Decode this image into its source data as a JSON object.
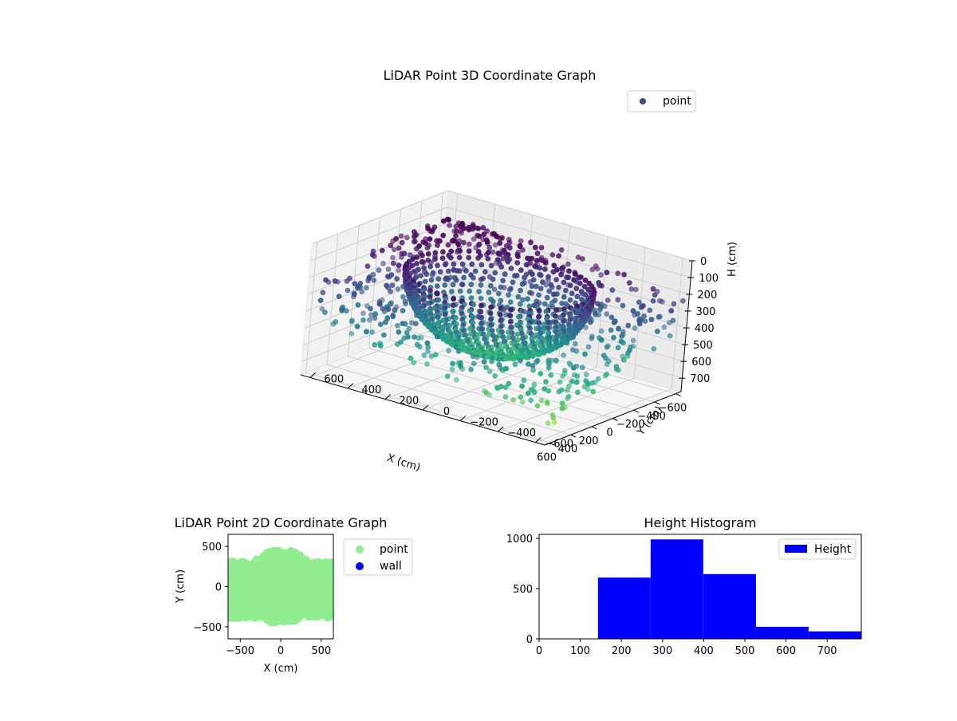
{
  "chart_data": [
    {
      "type": "scatter",
      "projection": "3d",
      "title": "LiDAR Point 3D Coordinate Graph",
      "xlabel": "X (cm)",
      "ylabel": "Y (cm)",
      "zlabel": "H (cm)",
      "xlim": [
        -650,
        650
      ],
      "ylim": [
        -650,
        650
      ],
      "zlim": [
        780,
        0
      ],
      "z_inverted": true,
      "xticks": [
        "-600",
        "-400",
        "-200",
        "0",
        "200",
        "400",
        "600"
      ],
      "yticks": [
        "-600",
        "-400",
        "-200",
        "0",
        "200",
        "400",
        "600"
      ],
      "zticks": [
        "0",
        "100",
        "200",
        "300",
        "400",
        "500",
        "600",
        "700"
      ],
      "colormap": "viridis",
      "legend": {
        "position": "top-right",
        "entries": [
          {
            "label": "point",
            "color": "#3e4a89"
          }
        ]
      },
      "series": [
        {
          "name": "point",
          "components": [
            {
              "shape": "hemispherical bowl",
              "center_x": 0,
              "center_y": 0,
              "radius": 440,
              "rim_height": 170,
              "bottom_height": 600
            },
            {
              "shape": "scattered points",
              "x_range": [
                -640,
                640
              ],
              "y_range": [
                -650,
                650
              ],
              "height_range": [
                150,
                780
              ]
            }
          ]
        }
      ],
      "grid": true
    },
    {
      "type": "scatter",
      "title": "LiDAR Point 2D Coordinate Graph",
      "xlabel": "X (cm)",
      "ylabel": "Y (cm)",
      "xlim": [
        -650,
        650
      ],
      "ylim": [
        -650,
        650
      ],
      "xticks": [
        "-500",
        "0",
        "500"
      ],
      "yticks": [
        "-500",
        "0",
        "500"
      ],
      "legend": {
        "position": "right",
        "entries": [
          {
            "label": "point",
            "color": "#90ee90"
          },
          {
            "label": "wall",
            "color": "#0000ff"
          }
        ]
      },
      "series": [
        {
          "name": "point",
          "color": "#90ee90",
          "description": "dense disc radius ~450 with band y from -380 to 300 across x from -650 to 650"
        },
        {
          "name": "wall",
          "color": "#0000ff",
          "points": []
        }
      ],
      "grid": false
    },
    {
      "type": "bar",
      "subtype": "histogram",
      "title": "Height Histogram",
      "bins": [
        {
          "start": 143,
          "end": 271,
          "count": 610
        },
        {
          "start": 271,
          "end": 399,
          "count": 990
        },
        {
          "start": 399,
          "end": 527,
          "count": 645
        },
        {
          "start": 527,
          "end": 655,
          "count": 120
        },
        {
          "start": 655,
          "end": 783,
          "count": 75
        }
      ],
      "xlim": [
        0,
        783
      ],
      "ylim": [
        0,
        1040
      ],
      "xticks": [
        "0",
        "100",
        "200",
        "300",
        "400",
        "500",
        "600",
        "700"
      ],
      "yticks": [
        "0",
        "500",
        "1000"
      ],
      "legend": {
        "position": "top-right",
        "entries": [
          {
            "label": "Height",
            "color": "#0000ff"
          }
        ]
      },
      "color": "#0000ff",
      "grid": false
    }
  ]
}
